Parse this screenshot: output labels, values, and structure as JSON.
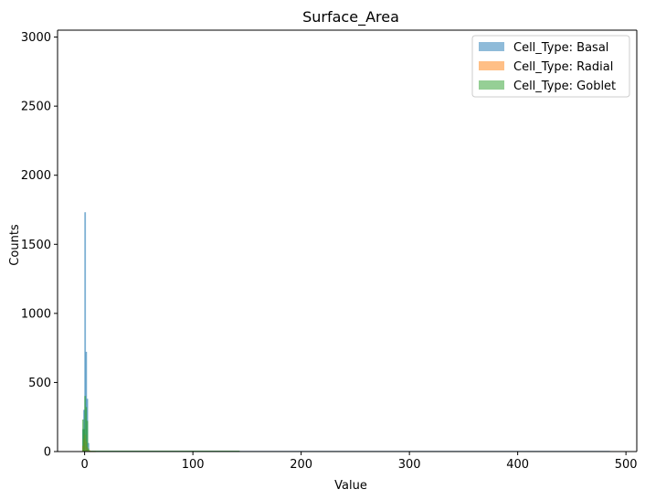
{
  "chart_data": {
    "type": "histogram",
    "title": "Surface_Area",
    "xlabel": "Value",
    "ylabel": "Counts",
    "xlim": [
      -25,
      510
    ],
    "ylim": [
      0,
      3050
    ],
    "x_ticks": [
      0,
      100,
      200,
      300,
      400,
      500
    ],
    "y_ticks": [
      0,
      500,
      1000,
      1500,
      2000,
      2500,
      3000
    ],
    "legend_position": "top-right",
    "series": [
      {
        "name": "Cell_Type: Basal",
        "color": "#1f77b4",
        "opacity": 0.5,
        "bins": [
          {
            "x0": -2,
            "x1": -1,
            "count": 160
          },
          {
            "x0": -1,
            "x1": 0,
            "count": 300
          },
          {
            "x0": 0,
            "x1": 1,
            "count": 1730
          },
          {
            "x0": 1,
            "x1": 2,
            "count": 720
          },
          {
            "x0": 2,
            "x1": 3,
            "count": 380
          },
          {
            "x0": 3,
            "x1": 4,
            "count": 60
          },
          {
            "x0": 4,
            "x1": 485,
            "count": 3
          }
        ]
      },
      {
        "name": "Cell_Type: Radial",
        "color": "#ff7f0e",
        "opacity": 0.5,
        "bins": [
          {
            "x0": -2,
            "x1": -1,
            "count": 40
          },
          {
            "x0": -1,
            "x1": 0,
            "count": 90
          },
          {
            "x0": 0,
            "x1": 1,
            "count": 120
          },
          {
            "x0": 1,
            "x1": 2,
            "count": 70
          },
          {
            "x0": 2,
            "x1": 3,
            "count": 30
          },
          {
            "x0": 3,
            "x1": 5,
            "count": 8
          },
          {
            "x0": 5,
            "x1": 10,
            "count": 2
          }
        ]
      },
      {
        "name": "Cell_Type: Goblet",
        "color": "#2ca02c",
        "opacity": 0.5,
        "bins": [
          {
            "x0": -2,
            "x1": -1,
            "count": 230
          },
          {
            "x0": -1,
            "x1": 0,
            "count": 160
          },
          {
            "x0": 0,
            "x1": 1,
            "count": 400
          },
          {
            "x0": 1,
            "x1": 2,
            "count": 320
          },
          {
            "x0": 2,
            "x1": 3,
            "count": 220
          },
          {
            "x0": 3,
            "x1": 4,
            "count": 20
          },
          {
            "x0": 4,
            "x1": 143,
            "count": 5
          }
        ]
      }
    ]
  }
}
